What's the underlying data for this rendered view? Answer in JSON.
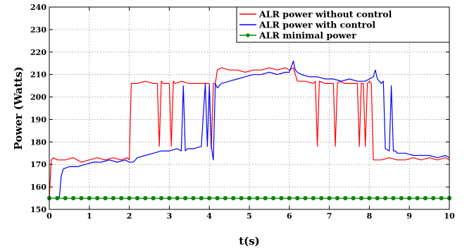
{
  "chart_data": {
    "type": "line",
    "title": "",
    "xlabel": "t(s)",
    "ylabel": "Power (Watts)",
    "xlim": [
      0,
      10
    ],
    "ylim": [
      150,
      240
    ],
    "xticks": [
      0,
      1,
      2,
      3,
      4,
      5,
      6,
      7,
      8,
      9,
      10
    ],
    "yticks": [
      150,
      160,
      170,
      180,
      190,
      200,
      210,
      220,
      230,
      240
    ],
    "grid": true,
    "legend_position": "top-right",
    "series": [
      {
        "name": "ALR power without control",
        "color": "#ff0000",
        "marker": "none",
        "x": [
          0,
          0.05,
          0.1,
          0.2,
          0.4,
          0.6,
          0.8,
          1.0,
          1.2,
          1.4,
          1.6,
          1.8,
          1.95,
          2.0,
          2.05,
          2.2,
          2.4,
          2.6,
          2.7,
          2.75,
          2.8,
          2.85,
          2.9,
          3.0,
          3.05,
          3.1,
          3.15,
          3.3,
          3.5,
          3.7,
          3.9,
          4.0,
          4.05,
          4.1,
          4.15,
          4.2,
          4.3,
          4.5,
          4.7,
          4.9,
          5.1,
          5.3,
          5.5,
          5.7,
          5.9,
          6.0,
          6.1,
          6.2,
          6.4,
          6.6,
          6.65,
          6.7,
          6.75,
          6.9,
          7.1,
          7.15,
          7.2,
          7.25,
          7.4,
          7.6,
          7.7,
          7.75,
          7.8,
          7.85,
          7.9,
          7.95,
          8.0,
          8.05,
          8.1,
          8.3,
          8.5,
          8.7,
          8.9,
          9.1,
          9.3,
          9.5,
          9.7,
          9.9,
          10.0
        ],
        "y": [
          155,
          172,
          173,
          172,
          172,
          173,
          171,
          172,
          173,
          172,
          173,
          172,
          173,
          172,
          206,
          206,
          207,
          206,
          206,
          178,
          207,
          206,
          206,
          206,
          178,
          207,
          206,
          207,
          206,
          206,
          206,
          206,
          177,
          206,
          206,
          212,
          213,
          212,
          212,
          211,
          212,
          212,
          213,
          212,
          213,
          212,
          213,
          207,
          207,
          206,
          207,
          178,
          207,
          206,
          206,
          178,
          206,
          207,
          206,
          206,
          206,
          178,
          206,
          206,
          178,
          206,
          207,
          206,
          172,
          172,
          173,
          172,
          172,
          173,
          172,
          173,
          172,
          173,
          172
        ]
      },
      {
        "name": "ALR power with control",
        "color": "#0000ff",
        "marker": "none",
        "x": [
          0.2,
          0.25,
          0.3,
          0.35,
          0.5,
          0.7,
          0.9,
          1.1,
          1.3,
          1.5,
          1.7,
          1.9,
          2.0,
          2.1,
          2.2,
          2.4,
          2.6,
          2.8,
          3.0,
          3.2,
          3.3,
          3.35,
          3.4,
          3.45,
          3.6,
          3.8,
          3.9,
          3.95,
          4.0,
          4.05,
          4.1,
          4.15,
          4.2,
          4.3,
          4.5,
          4.7,
          4.9,
          5.1,
          5.3,
          5.5,
          5.7,
          5.9,
          6.0,
          6.1,
          6.15,
          6.2,
          6.3,
          6.5,
          6.7,
          6.9,
          7.1,
          7.3,
          7.5,
          7.7,
          7.9,
          8.0,
          8.1,
          8.15,
          8.2,
          8.3,
          8.35,
          8.4,
          8.5,
          8.55,
          8.6,
          8.65,
          8.7,
          8.9,
          9.1,
          9.3,
          9.5,
          9.7,
          9.9,
          10.0
        ],
        "y": [
          155,
          155,
          165,
          168,
          169,
          169,
          170,
          171,
          171,
          172,
          171,
          172,
          171,
          171,
          173,
          174,
          175,
          176,
          176,
          177,
          176,
          205,
          176,
          177,
          177,
          178,
          206,
          178,
          205,
          178,
          172,
          206,
          204,
          206,
          207,
          208,
          209,
          210,
          210,
          211,
          210,
          211,
          211,
          216,
          212,
          211,
          210,
          209,
          209,
          208,
          208,
          207,
          208,
          207,
          207,
          208,
          209,
          212,
          208,
          206,
          207,
          177,
          176,
          205,
          176,
          176,
          175,
          175,
          174,
          174,
          174,
          173,
          174,
          173
        ]
      },
      {
        "name": "ALR minimal power",
        "color": "#008800",
        "marker": "circle",
        "x": [
          0,
          0.2,
          0.4,
          0.6,
          0.8,
          1.0,
          1.2,
          1.4,
          1.6,
          1.8,
          2.0,
          2.2,
          2.4,
          2.6,
          2.8,
          3.0,
          3.2,
          3.4,
          3.6,
          3.8,
          4.0,
          4.2,
          4.4,
          4.6,
          4.8,
          5.0,
          5.2,
          5.4,
          5.6,
          5.8,
          6.0,
          6.2,
          6.4,
          6.6,
          6.8,
          7.0,
          7.2,
          7.4,
          7.6,
          7.8,
          8.0,
          8.2,
          8.4,
          8.6,
          8.8,
          9.0,
          9.2,
          9.4,
          9.6,
          9.8,
          10.0
        ],
        "y": [
          155,
          155,
          155,
          155,
          155,
          155,
          155,
          155,
          155,
          155,
          155,
          155,
          155,
          155,
          155,
          155,
          155,
          155,
          155,
          155,
          155,
          155,
          155,
          155,
          155,
          155,
          155,
          155,
          155,
          155,
          155,
          155,
          155,
          155,
          155,
          155,
          155,
          155,
          155,
          155,
          155,
          155,
          155,
          155,
          155,
          155,
          155,
          155,
          155,
          155,
          155
        ]
      }
    ]
  }
}
